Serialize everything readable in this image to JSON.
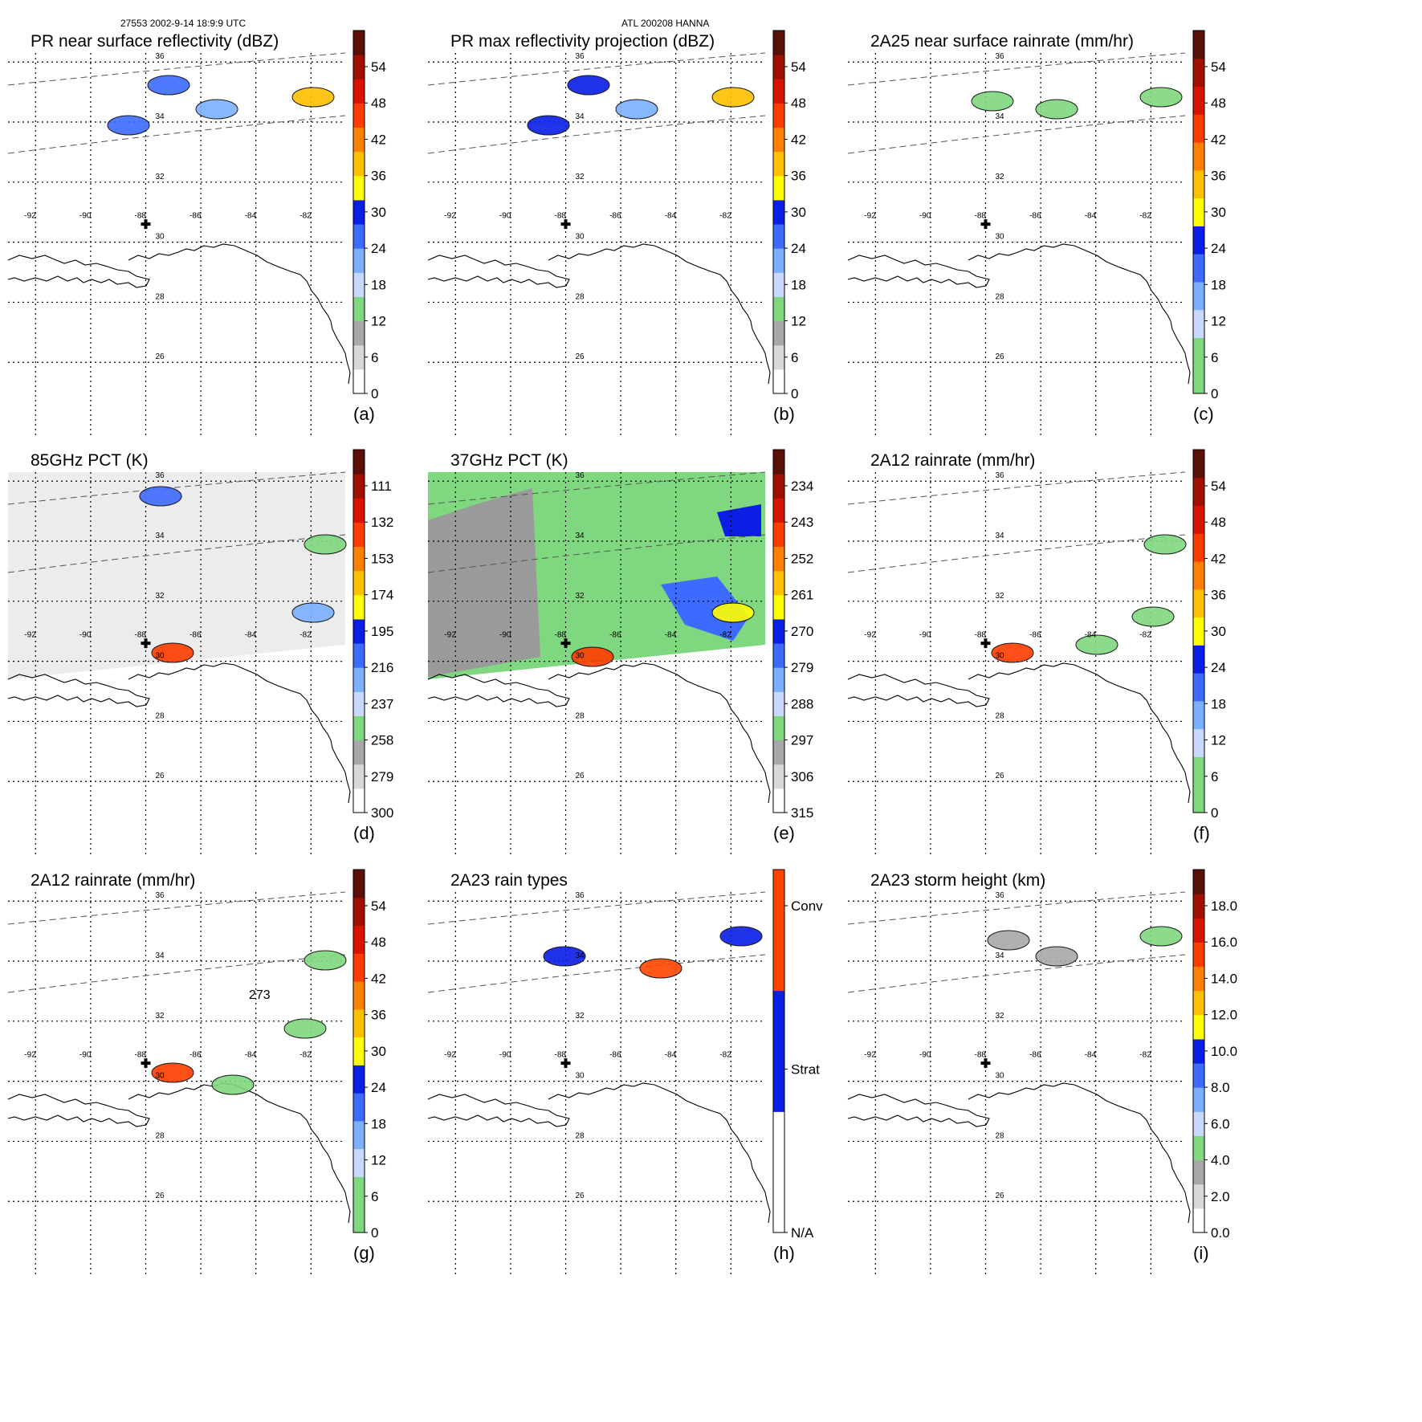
{
  "header": {
    "orbit_info": "27553 2002-9-14 18:9:9 UTC",
    "storm_info": "ATL 200208 HANNA"
  },
  "map": {
    "lat_labels": [
      "36",
      "34",
      "32",
      "30",
      "28",
      "26"
    ],
    "lon_labels": [
      "-92",
      "-90",
      "-88",
      "-86",
      "-84",
      "-82"
    ]
  },
  "panels": [
    {
      "id": "a",
      "title": "PR near surface reflectivity (dBZ)",
      "label": "(a)",
      "colorbar": {
        "ticks": [
          "0",
          "6",
          "12",
          "18",
          "24",
          "30",
          "36",
          "42",
          "48",
          "54"
        ],
        "colors": [
          "#ffffff",
          "#d8d8d8",
          "#a8a8a8",
          "#7fd87f",
          "#c8d8ff",
          "#7ab0ff",
          "#3d6bff",
          "#0a1ee6",
          "#ffff00",
          "#ffc000",
          "#ff8000",
          "#ff3c00",
          "#d81400",
          "#a01000",
          "#5a1008"
        ]
      }
    },
    {
      "id": "b",
      "title": "PR max reflectivity projection (dBZ)",
      "label": "(b)",
      "colorbar": {
        "ticks": [
          "0",
          "6",
          "12",
          "18",
          "24",
          "30",
          "36",
          "42",
          "48",
          "54"
        ],
        "colors": [
          "#ffffff",
          "#d8d8d8",
          "#a8a8a8",
          "#7fd87f",
          "#c8d8ff",
          "#7ab0ff",
          "#3d6bff",
          "#0a1ee6",
          "#ffff00",
          "#ffc000",
          "#ff8000",
          "#ff3c00",
          "#d81400",
          "#a01000",
          "#5a1008"
        ]
      }
    },
    {
      "id": "c",
      "title": "2A25 near surface rainrate (mm/hr)",
      "label": "(c)",
      "colorbar": {
        "ticks": [
          "0",
          "6",
          "12",
          "18",
          "24",
          "30",
          "36",
          "42",
          "48",
          "54"
        ],
        "colors": [
          "#7fd87f",
          "#7fd87f",
          "#c8d8ff",
          "#7ab0ff",
          "#3d6bff",
          "#0a1ee6",
          "#ffff00",
          "#ffc000",
          "#ff8000",
          "#ff3c00",
          "#d81400",
          "#a01000",
          "#5a1008"
        ]
      }
    },
    {
      "id": "d",
      "title": "85GHz PCT (K)",
      "label": "(d)",
      "colorbar": {
        "ticks": [
          "300",
          "279",
          "258",
          "237",
          "216",
          "195",
          "174",
          "153",
          "132",
          "111"
        ],
        "colors": [
          "#ffffff",
          "#d8d8d8",
          "#a8a8a8",
          "#7fd87f",
          "#c8d8ff",
          "#7ab0ff",
          "#3d6bff",
          "#0a1ee6",
          "#ffff00",
          "#ffc000",
          "#ff8000",
          "#ff3c00",
          "#d81400",
          "#a01000",
          "#5a1008"
        ]
      }
    },
    {
      "id": "e",
      "title": "37GHz PCT (K)",
      "label": "(e)",
      "colorbar": {
        "ticks": [
          "315",
          "306",
          "297",
          "288",
          "279",
          "270",
          "261",
          "252",
          "243",
          "234"
        ],
        "colors": [
          "#ffffff",
          "#d8d8d8",
          "#a8a8a8",
          "#7fd87f",
          "#c8d8ff",
          "#7ab0ff",
          "#3d6bff",
          "#0a1ee6",
          "#ffff00",
          "#ffc000",
          "#ff8000",
          "#ff3c00",
          "#d81400",
          "#a01000",
          "#5a1008"
        ]
      }
    },
    {
      "id": "f",
      "title": "2A12 rainrate (mm/hr)",
      "label": "(f)",
      "colorbar": {
        "ticks": [
          "0",
          "6",
          "12",
          "18",
          "24",
          "30",
          "36",
          "42",
          "48",
          "54"
        ],
        "colors": [
          "#7fd87f",
          "#7fd87f",
          "#c8d8ff",
          "#7ab0ff",
          "#3d6bff",
          "#0a1ee6",
          "#ffff00",
          "#ffc000",
          "#ff8000",
          "#ff3c00",
          "#d81400",
          "#a01000",
          "#5a1008"
        ]
      }
    },
    {
      "id": "g",
      "title": "2A12 rainrate (mm/hr)",
      "label": "(g)",
      "annotation": "273",
      "colorbar": {
        "ticks": [
          "0",
          "6",
          "12",
          "18",
          "24",
          "30",
          "36",
          "42",
          "48",
          "54"
        ],
        "colors": [
          "#7fd87f",
          "#7fd87f",
          "#c8d8ff",
          "#7ab0ff",
          "#3d6bff",
          "#0a1ee6",
          "#ffff00",
          "#ffc000",
          "#ff8000",
          "#ff3c00",
          "#d81400",
          "#a01000",
          "#5a1008"
        ]
      }
    },
    {
      "id": "h",
      "title": "2A23 rain types",
      "label": "(h)",
      "colorbar": {
        "ticks": [
          "N/A",
          "Strat",
          "Conv"
        ],
        "colors": [
          "#ffffff",
          "#0a1ee6",
          "#ff4500"
        ]
      }
    },
    {
      "id": "i",
      "title": "2A23 storm height (km)",
      "label": "(i)",
      "colorbar": {
        "ticks": [
          "0.0",
          "2.0",
          "4.0",
          "6.0",
          "8.0",
          "10.0",
          "12.0",
          "14.0",
          "16.0",
          "18.0"
        ],
        "colors": [
          "#ffffff",
          "#d8d8d8",
          "#a8a8a8",
          "#7fd87f",
          "#c8d8ff",
          "#7ab0ff",
          "#3d6bff",
          "#0a1ee6",
          "#ffff00",
          "#ffc000",
          "#ff8000",
          "#ff3c00",
          "#d81400",
          "#a01000",
          "#5a1008"
        ]
      }
    }
  ]
}
